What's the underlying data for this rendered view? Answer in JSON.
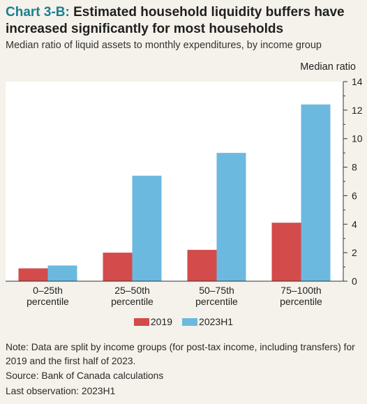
{
  "header": {
    "chart_number": "Chart 3-B:",
    "title": "Estimated household liquidity buffers have increased significantly for most households",
    "subtitle": "Median ratio of liquid assets to monthly expenditures, by income group"
  },
  "chart_data": {
    "type": "bar",
    "categories": [
      [
        "0–25th",
        "percentile"
      ],
      [
        "25–50th",
        "percentile"
      ],
      [
        "50–75th",
        "percentile"
      ],
      [
        "75–100th",
        "percentile"
      ]
    ],
    "series": [
      {
        "name": "2019",
        "color": "#d44b4b",
        "values": [
          0.9,
          2.0,
          2.2,
          4.1
        ]
      },
      {
        "name": "2023H1",
        "color": "#6bb9df",
        "values": [
          1.1,
          7.4,
          9.0,
          12.4
        ]
      }
    ],
    "ylabel": "Median ratio",
    "ylim": [
      0,
      14
    ],
    "yticks": [
      0,
      2,
      4,
      6,
      8,
      10,
      12,
      14
    ],
    "y_axis_side": "right",
    "grid": false,
    "legend_position": "bottom"
  },
  "footer": {
    "note": "Note: Data are split by income groups (for post-tax income, including transfers) for 2019 and the first half of 2023.",
    "source": "Source: Bank of Canada calculations",
    "last_observation": "Last observation: 2023H1"
  }
}
